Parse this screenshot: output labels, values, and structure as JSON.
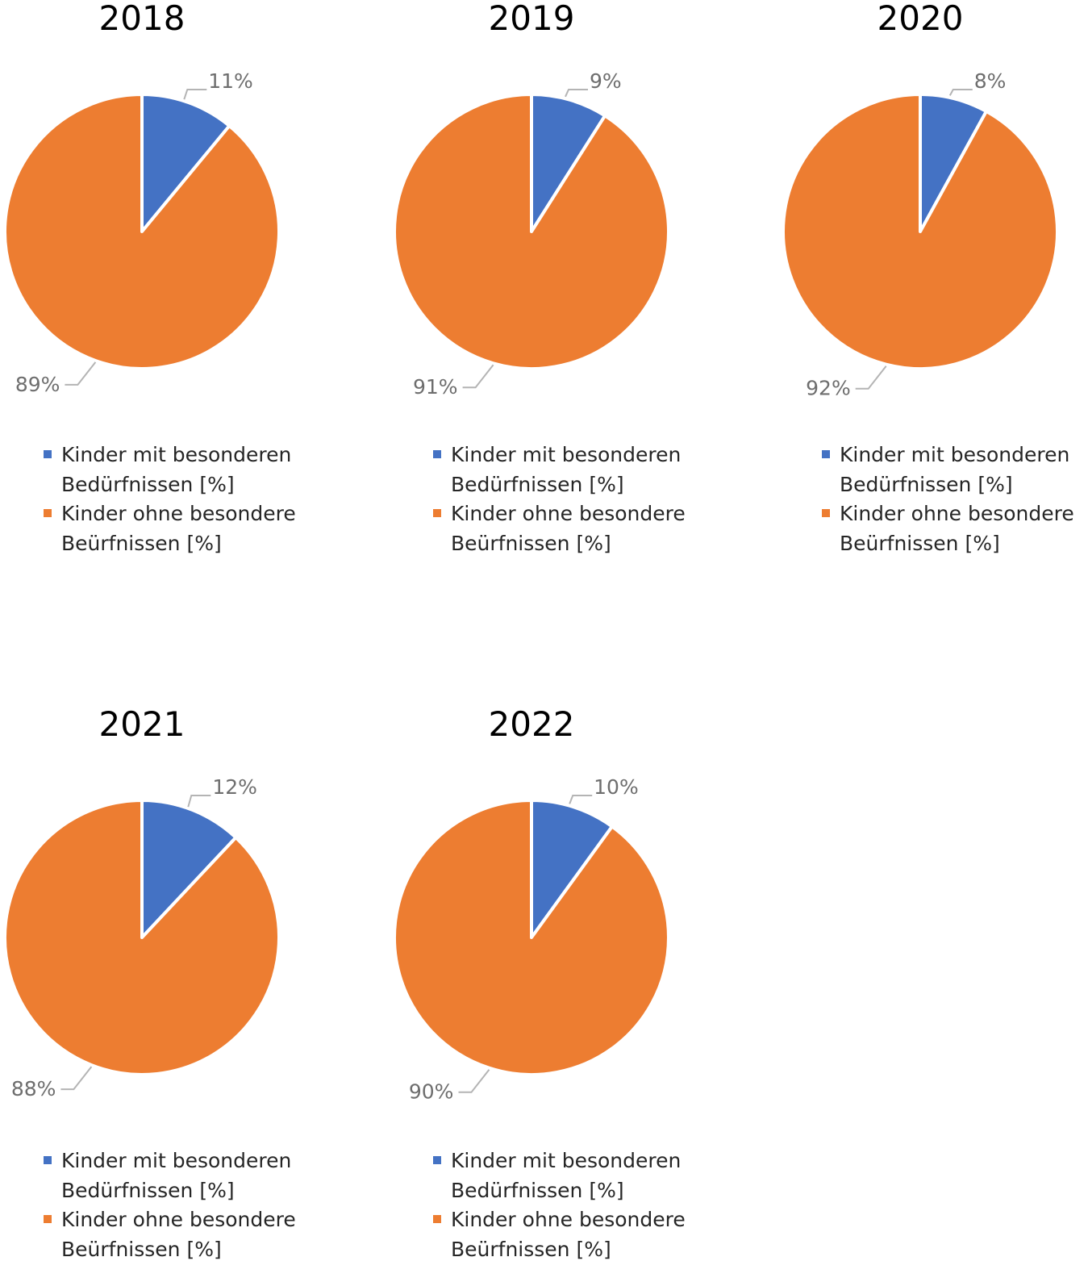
{
  "colors": {
    "series_with_needs": "#4472c4",
    "series_without_needs": "#ed7d31",
    "slice_border": "#ffffff",
    "label_text": "#6e6e6e",
    "leader_line": "#b4b4b4"
  },
  "legend": {
    "placement": "bottom",
    "entries": [
      {
        "lines": [
          "Kinder mit besonderen",
          "Bedürfnissen [%]"
        ],
        "color": "#4472c4"
      },
      {
        "lines": [
          "Kinder ohne besondere",
          "Beürfnissen [%]"
        ],
        "color": "#ed7d31"
      }
    ]
  },
  "chart_data": [
    {
      "type": "pie",
      "title": "2018",
      "categories": [
        "Kinder mit besonderen Bedürfnissen [%]",
        "Kinder ohne besondere Beürfnissen [%]"
      ],
      "values": [
        11,
        89
      ],
      "labels": [
        "11%",
        "89%"
      ]
    },
    {
      "type": "pie",
      "title": "2019",
      "categories": [
        "Kinder mit besonderen Bedürfnissen [%]",
        "Kinder ohne besondere Beürfnissen [%]"
      ],
      "values": [
        9,
        91
      ],
      "labels": [
        "9%",
        "91%"
      ]
    },
    {
      "type": "pie",
      "title": "2020",
      "categories": [
        "Kinder mit besonderen Bedürfnissen [%]",
        "Kinder ohne besondere Beürfnissen [%]"
      ],
      "values": [
        8,
        92
      ],
      "labels": [
        "8%",
        "92%"
      ]
    },
    {
      "type": "pie",
      "title": "2021",
      "categories": [
        "Kinder mit besonderen Bedürfnissen [%]",
        "Kinder ohne besondere Beürfnissen [%]"
      ],
      "values": [
        12,
        88
      ],
      "labels": [
        "12%",
        "88%"
      ]
    },
    {
      "type": "pie",
      "title": "2022",
      "categories": [
        "Kinder mit besonderen Bedürfnissen [%]",
        "Kinder ohne besondere Beürfnissen [%]"
      ],
      "values": [
        10,
        90
      ],
      "labels": [
        "10%",
        "90%"
      ]
    }
  ]
}
